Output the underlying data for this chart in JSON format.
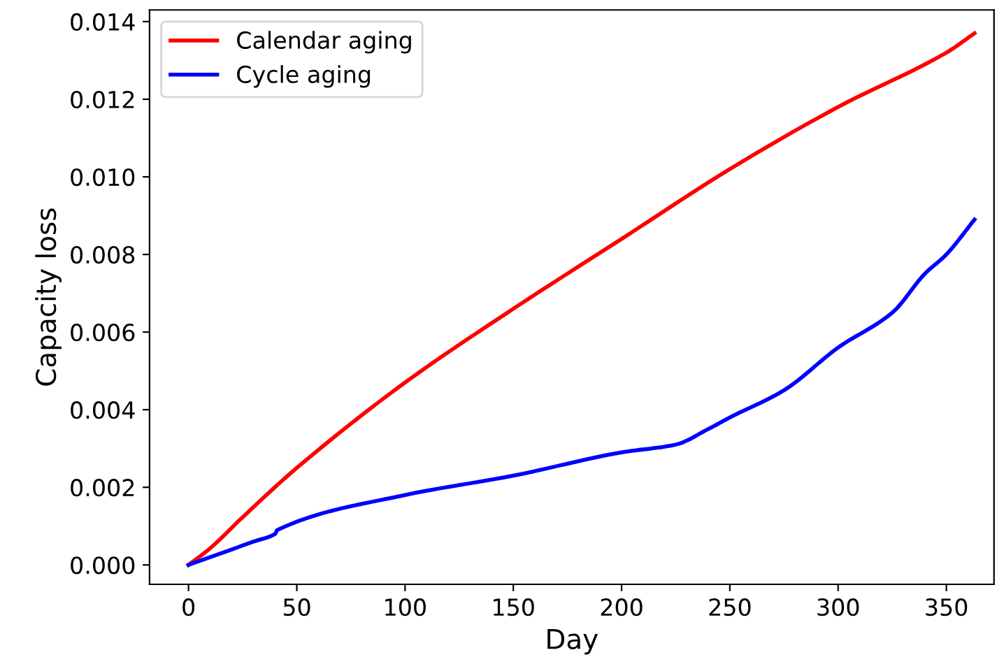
{
  "chart_data": {
    "type": "line",
    "xlabel": "Day",
    "ylabel": "Capacity loss",
    "xlim": [
      -18,
      372
    ],
    "xticks": [
      0,
      50,
      100,
      150,
      200,
      250,
      300,
      350
    ],
    "ylim": [
      -0.0005,
      0.0143
    ],
    "yticks": [
      {
        "value": 0,
        "label": "0.000"
      },
      {
        "value": 0.002,
        "label": "0.002"
      },
      {
        "value": 0.004,
        "label": "0.004"
      },
      {
        "value": 0.006,
        "label": "0.006"
      },
      {
        "value": 0.008,
        "label": "0.008"
      },
      {
        "value": 0.01,
        "label": "0.010"
      },
      {
        "value": 0.012,
        "label": "0.012"
      },
      {
        "value": 0.014,
        "label": "0.014"
      }
    ],
    "legend": "top left",
    "grid": false,
    "series": [
      {
        "name": "Calendar aging",
        "color": "#ff0000",
        "x": [
          0,
          10,
          25,
          50,
          100,
          150,
          200,
          250,
          300,
          350,
          363
        ],
        "values": [
          0,
          0.00043,
          0.00123,
          0.0025,
          0.0047,
          0.0066,
          0.0084,
          0.0102,
          0.0118,
          0.0132,
          0.0137
        ]
      },
      {
        "name": "Cycle aging",
        "color": "#0000ff",
        "x": [
          0,
          30,
          40,
          41,
          100,
          150,
          200,
          225,
          240,
          250,
          275,
          300,
          325,
          340,
          350,
          363
        ],
        "values": [
          0,
          0.0006,
          0.0008,
          0.0009,
          0.0018,
          0.0023,
          0.0029,
          0.0031,
          0.0035,
          0.0038,
          0.0045,
          0.0056,
          0.0065,
          0.0075,
          0.008,
          0.0089
        ]
      }
    ]
  }
}
